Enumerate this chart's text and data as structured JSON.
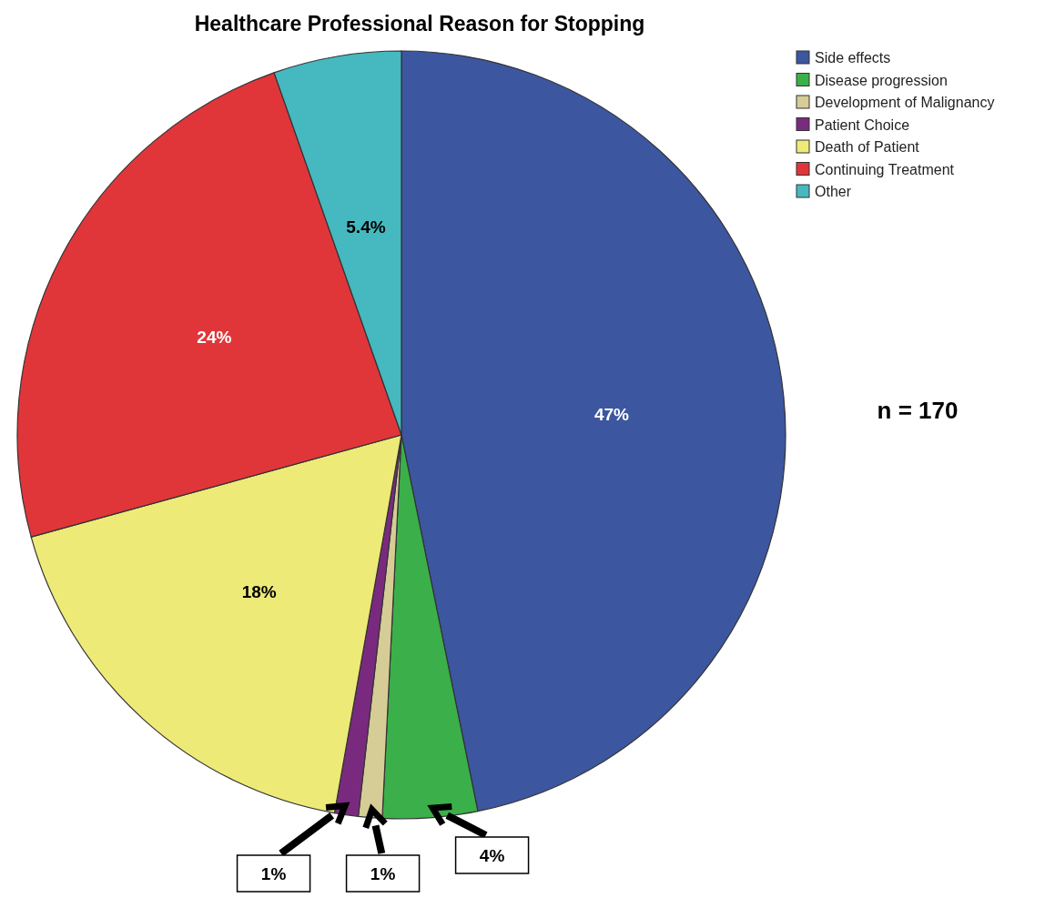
{
  "chart_data": {
    "type": "pie",
    "title": "Healthcare Professional Reason for Stopping",
    "categories": [
      "Side effects",
      "Disease progression",
      "Development of Malignancy",
      "Patient Choice",
      "Death of Patient",
      "Continuing Treatment",
      "Other"
    ],
    "values": [
      47,
      4,
      1,
      1,
      18,
      24,
      5.4
    ],
    "value_labels": [
      "47%",
      "4%",
      "1%",
      "1%",
      "18%",
      "24%",
      "5.4%"
    ],
    "colors": [
      "#3c56a0",
      "#3bb04a",
      "#d6cc96",
      "#7a2a7e",
      "#eeea78",
      "#e0363a",
      "#46b8bf"
    ],
    "legend": "top right",
    "annotations": [
      "n = 170"
    ]
  }
}
